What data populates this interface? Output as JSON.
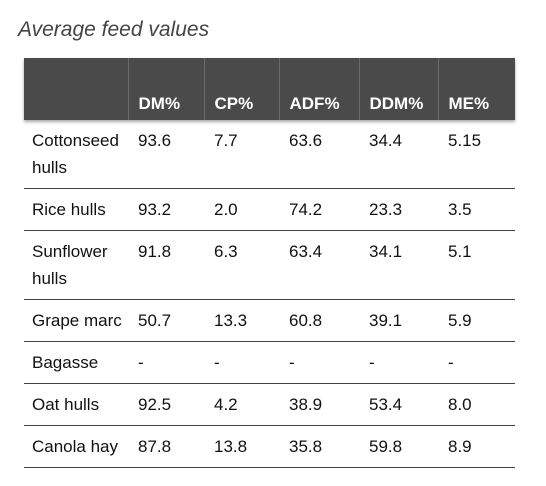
{
  "title": "Average feed values",
  "table": {
    "headers": [
      "",
      "DM%",
      "CP%",
      "ADF%",
      "DDM%",
      "ME%"
    ],
    "rows": [
      [
        "Cottonseed hulls",
        "93.6",
        "7.7",
        "63.6",
        "34.4",
        "5.15"
      ],
      [
        "Rice hulls",
        "93.2",
        "2.0",
        "74.2",
        "23.3",
        "3.5"
      ],
      [
        "Sunflower hulls",
        "91.8",
        "6.3",
        "63.4",
        "34.1",
        "5.1"
      ],
      [
        "Grape marc",
        "50.7",
        "13.3",
        "60.8",
        "39.1",
        "5.9"
      ],
      [
        "Bagasse",
        "-",
        "-",
        "-",
        "-",
        "-"
      ],
      [
        "Oat hulls",
        "92.5",
        "4.2",
        "38.9",
        "53.4",
        "8.0"
      ],
      [
        "Canola hay",
        "87.8",
        "13.8",
        "35.8",
        "59.8",
        "8.9"
      ]
    ]
  }
}
